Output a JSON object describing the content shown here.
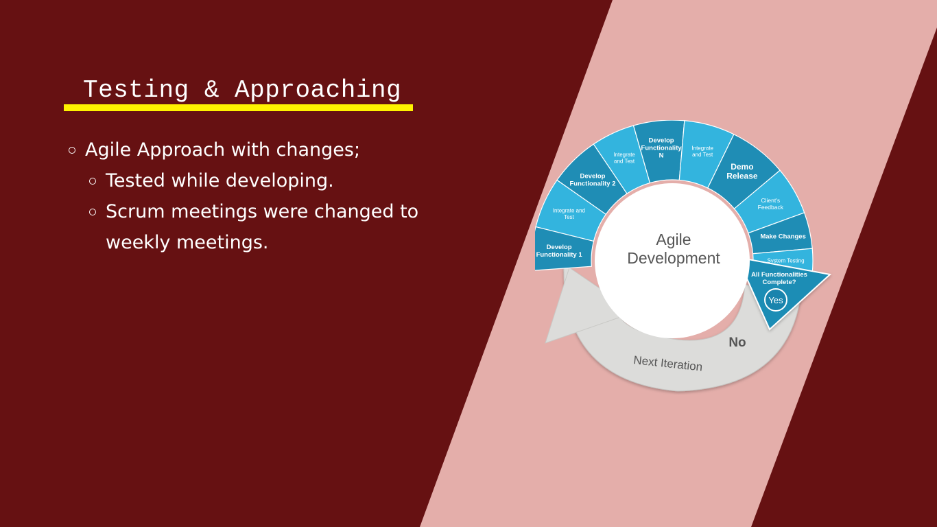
{
  "slide": {
    "title": "Testing & Approaching",
    "bullets": [
      {
        "level": 1,
        "text": "Agile Approach with changes;"
      },
      {
        "level": 2,
        "text": "Tested while developing."
      },
      {
        "level": 2,
        "text": "Scrum meetings were changed to",
        "continuation": "weekly meetings."
      }
    ]
  },
  "diagram": {
    "center_title_line1": "Agile",
    "center_title_line2": "Development",
    "segments": [
      {
        "lines": [
          "Develop",
          "Functionality 1"
        ]
      },
      {
        "lines": [
          "Integrate and",
          "Test"
        ]
      },
      {
        "lines": [
          "Develop",
          "Functionality 2"
        ]
      },
      {
        "lines": [
          "Integrate",
          "and Test"
        ]
      },
      {
        "lines": [
          "Develop",
          "Functionality",
          "N"
        ]
      },
      {
        "lines": [
          "Integrate",
          "and Test"
        ]
      },
      {
        "lines": [
          "Demo",
          "Release"
        ]
      },
      {
        "lines": [
          "Client's",
          "Feedback"
        ]
      },
      {
        "lines": [
          "Make Changes"
        ]
      },
      {
        "lines": [
          "System Testing"
        ]
      }
    ],
    "decision_line1": "All Functionalities",
    "decision_line2": "Complete?",
    "yes_label": "Yes",
    "no_label": "No",
    "next_iteration_label": "Next Iteration"
  },
  "colors": {
    "background": "#661112",
    "stripe": "#e4aeaa",
    "underline": "#fff200",
    "segment_dark": "#1f8db5",
    "segment_light": "#33b4de",
    "return_arrow": "#dcdcda"
  }
}
